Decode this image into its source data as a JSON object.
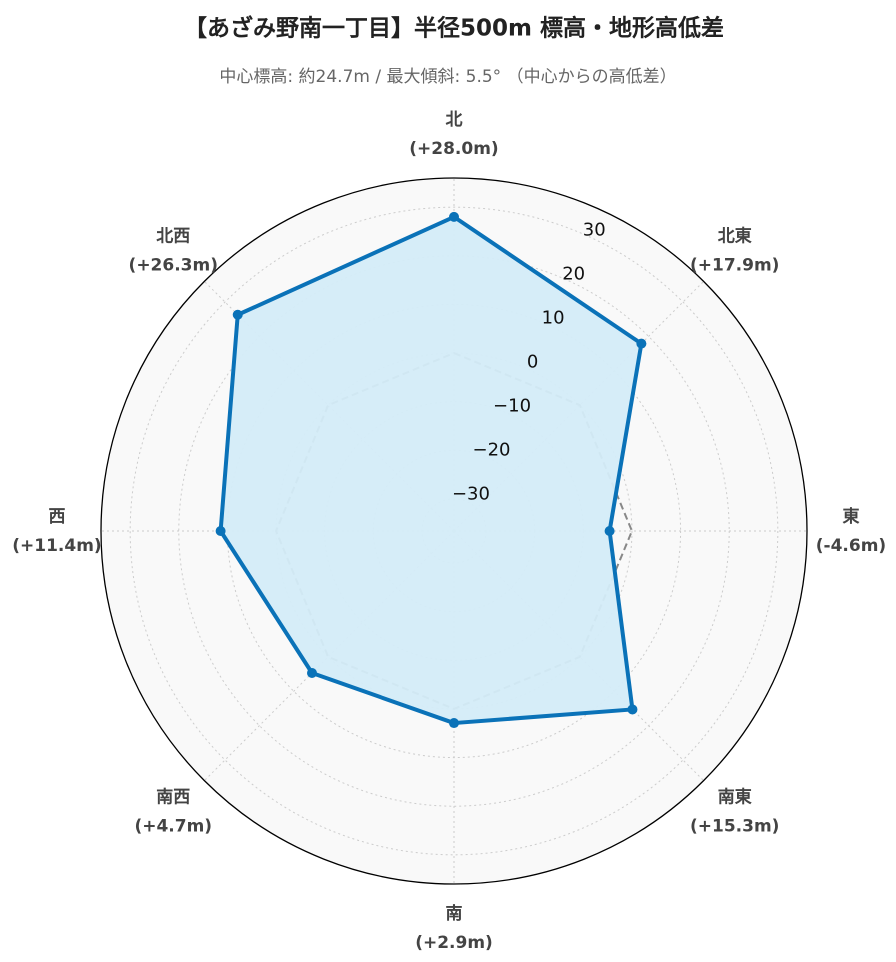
{
  "chart_data": {
    "type": "radar",
    "title": "【あざみ野南一丁目】半径500m 標高・地形高低差",
    "subtitle": "中心標高: 約24.7m / 最大傾斜: 5.5° （中心からの高低差）",
    "categories": [
      "北",
      "北東",
      "東",
      "南東",
      "南",
      "南西",
      "西",
      "北西"
    ],
    "values": [
      28.0,
      17.9,
      -4.6,
      15.3,
      2.9,
      4.7,
      11.4,
      26.3
    ],
    "value_labels": [
      "(+28.0m)",
      "(+17.9m)",
      "(-4.6m)",
      "(+15.3m)",
      "(+2.9m)",
      "(+4.7m)",
      "(+11.4m)",
      "(+26.3m)"
    ],
    "color": "#0a72b8",
    "fill_color": "#d4ecf8",
    "reference_line": 0,
    "ylim": [
      -36.6,
      36.0
    ],
    "yticks": [
      {
        "value": -30,
        "label": "−30"
      },
      {
        "value": -20,
        "label": "−20"
      },
      {
        "value": -10,
        "label": "−10"
      },
      0,
      10,
      20,
      30
    ],
    "grid": true
  }
}
